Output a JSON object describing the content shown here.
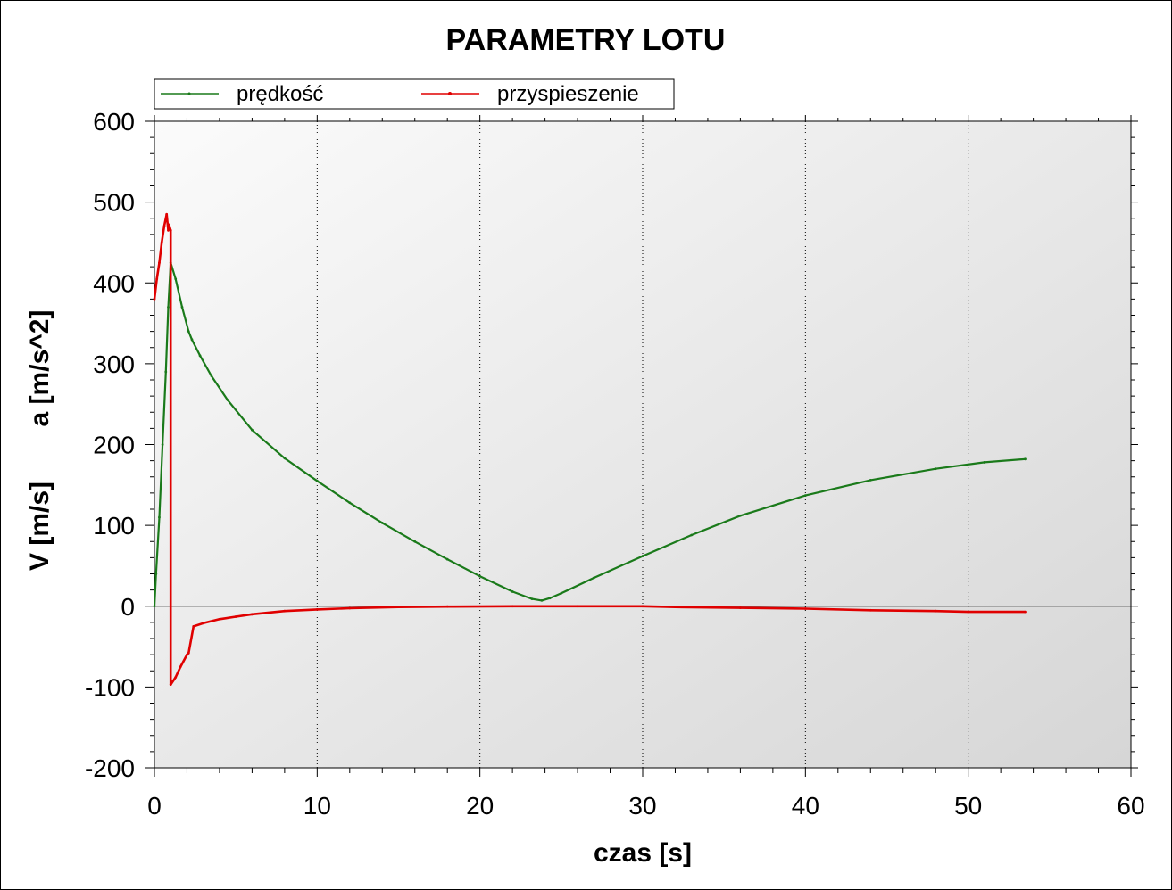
{
  "chart_data": {
    "type": "line",
    "title": "PARAMETRY LOTU",
    "xlabel": "czas [s]",
    "ylabel_left": "V [m/s]",
    "ylabel_right": "a [m/s^2]",
    "xlim": [
      0,
      60
    ],
    "ylim": [
      -200,
      600
    ],
    "x_ticks": [
      "0",
      "10",
      "20",
      "30",
      "40",
      "50",
      "60"
    ],
    "y_ticks": [
      "600",
      "500",
      "400",
      "300",
      "200",
      "100",
      "0",
      "-100",
      "-200"
    ],
    "grid": "vertical dotted",
    "legend_position": "top",
    "colors": {
      "predkosc": "#1a7a1a",
      "przyspieszenie": "#e00000"
    },
    "series": [
      {
        "name": "prędkość",
        "x": [
          0,
          0.1,
          0.3,
          0.5,
          0.7,
          0.85,
          1.0,
          1.3,
          1.7,
          2.1,
          2.3,
          2.8,
          3.5,
          4.5,
          6,
          8,
          10,
          12,
          14,
          16,
          18,
          20,
          22,
          23.2,
          23.8,
          24.3,
          25,
          27,
          30,
          33,
          36,
          40,
          44,
          48,
          51,
          53.5
        ],
        "y": [
          0,
          40,
          110,
          200,
          290,
          370,
          425,
          405,
          370,
          340,
          330,
          310,
          285,
          255,
          218,
          183,
          155,
          128,
          103,
          80,
          58,
          37,
          18,
          9,
          7,
          10,
          16,
          35,
          62,
          88,
          112,
          137,
          156,
          170,
          178,
          182
        ]
      },
      {
        "name": "przyspieszenie",
        "x": [
          0,
          0.15,
          0.3,
          0.45,
          0.6,
          0.75,
          0.85,
          0.9,
          1.0,
          1.0,
          1.3,
          1.6,
          2.0,
          2.1,
          2.4,
          3,
          4,
          5,
          6,
          8,
          10,
          12,
          15,
          18,
          22,
          26,
          30,
          32,
          36,
          40,
          44,
          48,
          50,
          53.5
        ],
        "y": [
          380,
          405,
          425,
          450,
          470,
          485,
          465,
          472,
          465,
          -97,
          -88,
          -75,
          -60,
          -58,
          -25,
          -21,
          -16,
          -13,
          -10,
          -6,
          -4,
          -2.5,
          -1,
          -0.5,
          0,
          0,
          0,
          -1,
          -2,
          -3,
          -5,
          -6,
          -7,
          -7
        ]
      }
    ]
  }
}
